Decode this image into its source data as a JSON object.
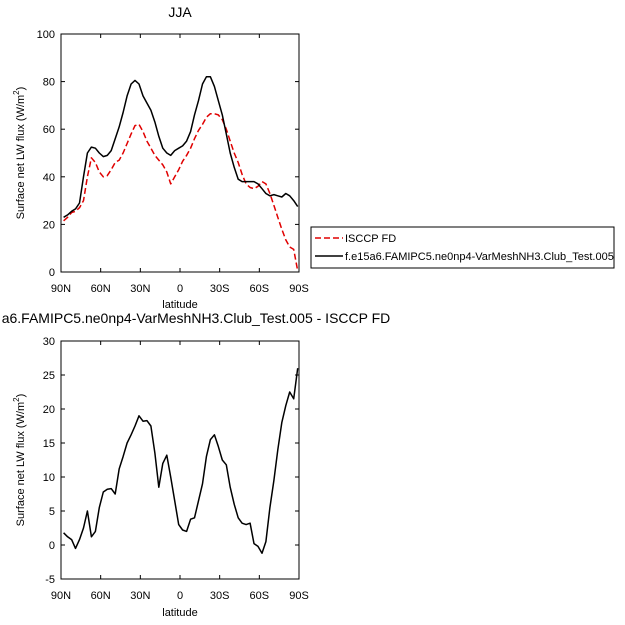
{
  "chart_data": [
    {
      "type": "line",
      "title": "JJA",
      "xlabel": "latitude",
      "ylabel_main": "Surface net LW flux (W/m",
      "ylabel_sup": "2",
      "ylabel_tail": ")",
      "xlim": [
        90,
        -90
      ],
      "ylim": [
        0,
        100
      ],
      "x_ticks": [
        90,
        60,
        30,
        0,
        -30,
        -60,
        -90
      ],
      "x_tick_labels": [
        "90N",
        "60N",
        "30N",
        "0",
        "30S",
        "60S",
        "90S"
      ],
      "y_ticks": [
        0,
        20,
        40,
        60,
        80,
        100
      ],
      "y_tick_labels": [
        "0",
        "20",
        "40",
        "60",
        "80",
        "100"
      ],
      "legend_position": "right",
      "series": [
        {
          "name": "ISCCP FD",
          "color": "#e00000",
          "dash": "dashed",
          "x": [
            88,
            85,
            82,
            79,
            76,
            73,
            70,
            67,
            64,
            61,
            58,
            55,
            52,
            49,
            46,
            43,
            40,
            37,
            34,
            31,
            28,
            25,
            22,
            19,
            16,
            13,
            10,
            7,
            4,
            1,
            -2,
            -5,
            -8,
            -11,
            -14,
            -17,
            -20,
            -23,
            -26,
            -29,
            -32,
            -35,
            -38,
            -41,
            -44,
            -47,
            -50,
            -53,
            -56,
            -59,
            -62,
            -65,
            -68,
            -71,
            -74,
            -77,
            -80,
            -83,
            -86,
            -89
          ],
          "y": [
            21.5,
            23,
            25,
            25.5,
            27,
            30,
            40,
            48,
            46,
            42,
            40,
            40.5,
            43,
            46,
            47,
            50,
            54,
            58,
            61.5,
            62,
            59,
            55,
            52,
            49,
            47,
            45,
            42,
            37,
            40,
            43,
            46.5,
            49,
            52,
            56,
            59.5,
            62,
            65,
            66.5,
            66.5,
            66,
            64,
            60,
            55,
            50,
            46,
            41,
            37,
            35.5,
            35,
            36,
            38,
            37,
            33,
            28,
            23,
            18,
            13.5,
            10.5,
            9.5,
            0.5
          ]
        },
        {
          "name": "f.e15a6.FAMIPC5.ne0np4-VarMeshNH3.Club_Test.005",
          "color": "#000000",
          "dash": "solid",
          "x": [
            88,
            85,
            82,
            79,
            76,
            73,
            70,
            67,
            64,
            61,
            58,
            55,
            52,
            49,
            46,
            43,
            40,
            37,
            34,
            31,
            28,
            25,
            22,
            19,
            16,
            13,
            10,
            7,
            4,
            1,
            -2,
            -5,
            -8,
            -11,
            -14,
            -17,
            -20,
            -23,
            -26,
            -29,
            -32,
            -35,
            -38,
            -41,
            -44,
            -47,
            -50,
            -53,
            -56,
            -59,
            -62,
            -65,
            -68,
            -71,
            -74,
            -77,
            -80,
            -83,
            -86,
            -89
          ],
          "y": [
            23,
            24,
            25.5,
            26.5,
            29,
            40,
            50,
            52.5,
            52,
            50,
            48.5,
            49,
            51,
            56,
            61,
            67,
            74,
            79,
            80.5,
            79,
            74,
            71,
            68,
            63,
            57,
            52,
            50,
            49,
            51,
            52,
            53,
            55,
            59,
            66,
            72,
            79,
            82,
            82,
            78,
            72,
            66,
            58,
            50,
            44,
            39,
            38,
            38,
            38,
            38,
            37,
            35,
            33,
            32,
            32.5,
            32,
            31.5,
            33,
            32,
            30,
            27.5
          ]
        }
      ]
    },
    {
      "type": "line",
      "title": "a6.FAMIPC5.ne0np4-VarMeshNH3.Club_Test.005 - ISCCP FD",
      "xlabel": "latitude",
      "ylabel_main": "Surface net LW flux (W/m",
      "ylabel_sup": "2",
      "ylabel_tail": ")",
      "xlim": [
        90,
        -90
      ],
      "ylim": [
        -5,
        30
      ],
      "x_ticks": [
        90,
        60,
        30,
        0,
        -30,
        -60,
        -90
      ],
      "x_tick_labels": [
        "90N",
        "60N",
        "30N",
        "0",
        "30S",
        "60S",
        "90S"
      ],
      "y_ticks": [
        -5,
        0,
        5,
        10,
        15,
        20,
        25,
        30
      ],
      "y_tick_labels": [
        "-5",
        "0",
        "5",
        "10",
        "15",
        "20",
        "25",
        "30"
      ],
      "series": [
        {
          "color": "#000000",
          "dash": "solid",
          "x": [
            88,
            85,
            82,
            79,
            76,
            73,
            70,
            67,
            64,
            61,
            58,
            55,
            52,
            49,
            46,
            43,
            40,
            37,
            34,
            31,
            28,
            25,
            22,
            19,
            16,
            13,
            10,
            7,
            4,
            1,
            -2,
            -5,
            -8,
            -11,
            -14,
            -17,
            -20,
            -23,
            -26,
            -29,
            -32,
            -35,
            -38,
            -41,
            -44,
            -47,
            -50,
            -53,
            -56,
            -59,
            -62,
            -65,
            -68,
            -71,
            -74,
            -77,
            -80,
            -83,
            -86,
            -89
          ],
          "y": [
            1.8,
            1.2,
            0.8,
            -0.5,
            0.8,
            2.5,
            5.0,
            1.2,
            2.0,
            5.5,
            7.8,
            8.2,
            8.3,
            7.5,
            11.2,
            13.0,
            15.0,
            16.2,
            17.5,
            19.0,
            18.2,
            18.3,
            17.5,
            13.5,
            8.5,
            12.0,
            13.2,
            10.0,
            6.5,
            3.0,
            2.2,
            2.0,
            3.8,
            4.0,
            6.5,
            9.0,
            13.0,
            15.5,
            16.2,
            14.5,
            12.5,
            11.8,
            8.5,
            6.0,
            4.0,
            3.2,
            3.0,
            3.2,
            0.2,
            -0.2,
            -1.2,
            0.5,
            5.5,
            9.5,
            14.0,
            18.0,
            20.5,
            22.5,
            21.5,
            26.0
          ]
        }
      ]
    }
  ]
}
